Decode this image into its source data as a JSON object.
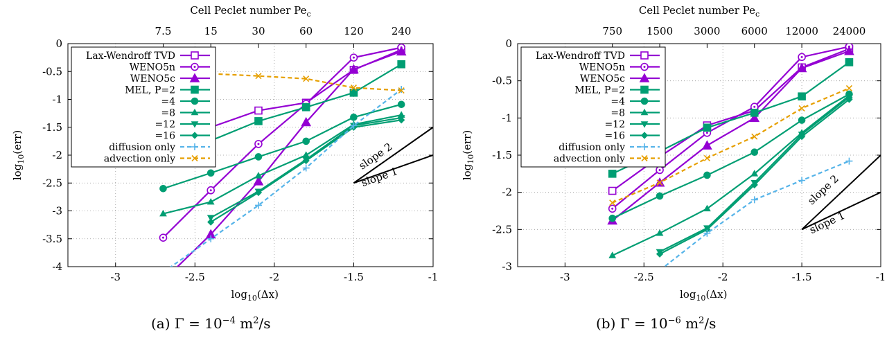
{
  "colors": {
    "lw": "#9400d3",
    "weno5n": "#9400d3",
    "weno5c": "#9400d3",
    "mel": "#009e73",
    "diffusion": "#56b4e9",
    "advection": "#e69f00",
    "slope": "#000000"
  },
  "charts": [
    {
      "caption": {
        "prefix": "(a)",
        "symbol": "Γ =",
        "base": "10",
        "exp": "−4",
        "unit": "m",
        "unit_exp": "2",
        "tail": "/s"
      },
      "chart_data": {
        "type": "line",
        "xlabel": {
          "pre": "log",
          "sub": "10",
          "post": "(Δx)"
        },
        "ylabel": {
          "pre": "log",
          "sub": "10",
          "post": "(err)"
        },
        "x2label": {
          "text": "Cell Peclet number Pe",
          "sub": "c"
        },
        "xlim": [
          -3.3,
          -1.0
        ],
        "ylim": [
          -4.0,
          0.0
        ],
        "xticks": [
          -3,
          -2.5,
          -2,
          -1.5,
          -1
        ],
        "xtick_labels": [
          "-3",
          "-2.5",
          "-2",
          "-1.5",
          "-1"
        ],
        "yticks": [
          0,
          -0.5,
          -1,
          -1.5,
          -2,
          -2.5,
          -3,
          -3.5,
          -4
        ],
        "ytick_labels": [
          "0",
          "-0.5",
          "-1",
          "-1.5",
          "-2",
          "-2.5",
          "-3",
          "-3.5",
          "-4"
        ],
        "x2ticks": [
          -2.7,
          -2.4,
          -2.1,
          -1.8,
          -1.5,
          -1.2
        ],
        "x2tick_labels": [
          "7.5",
          "15",
          "30",
          "60",
          "120",
          "240"
        ],
        "grid": true,
        "legend_position": "top-left",
        "series": [
          {
            "name": "Lax-Wendroff TVD",
            "color_key": "lw",
            "marker": "square",
            "dash": false,
            "x": [
              -2.7,
              -2.4,
              -2.1,
              -1.8,
              -1.5,
              -1.2
            ],
            "y": [
              -1.95,
              -1.5,
              -1.2,
              -1.06,
              -0.47,
              -0.11
            ]
          },
          {
            "name": "WENO5n",
            "color_key": "weno5n",
            "marker": "circle-dot",
            "dash": false,
            "x": [
              -2.7,
              -2.4,
              -2.1,
              -1.8,
              -1.5,
              -1.2
            ],
            "y": [
              -3.48,
              -2.63,
              -1.8,
              -1.08,
              -0.25,
              -0.07
            ]
          },
          {
            "name": "WENO5c",
            "color_key": "weno5c",
            "marker": "triangle",
            "dash": false,
            "x": [
              -2.7,
              -2.4,
              -2.1,
              -1.8,
              -1.5,
              -1.2
            ],
            "y": [
              -4.25,
              -3.42,
              -2.47,
              -1.41,
              -0.46,
              -0.14
            ]
          },
          {
            "name": "MEL, P=2",
            "color_key": "mel",
            "marker": "square-filled",
            "dash": false,
            "x": [
              -2.7,
              -2.4,
              -2.1,
              -1.8,
              -1.5,
              -1.2
            ],
            "y": [
              -2.08,
              -1.74,
              -1.39,
              -1.14,
              -0.88,
              -0.37
            ]
          },
          {
            "name": "=4",
            "color_key": "mel",
            "marker": "circle-filled",
            "dash": false,
            "x": [
              -2.7,
              -2.4,
              -2.1,
              -1.8,
              -1.5,
              -1.2
            ],
            "y": [
              -2.6,
              -2.32,
              -2.03,
              -1.75,
              -1.32,
              -1.09
            ]
          },
          {
            "name": "=8",
            "color_key": "mel",
            "marker": "triangle-filled",
            "dash": false,
            "x": [
              -2.7,
              -2.4,
              -2.1,
              -1.8,
              -1.5,
              -1.2
            ],
            "y": [
              -3.05,
              -2.84,
              -2.37,
              -2.0,
              -1.45,
              -1.28
            ]
          },
          {
            "name": "=12",
            "color_key": "mel",
            "marker": "triangle-down-filled",
            "dash": false,
            "x": [
              -2.4,
              -2.1,
              -1.8,
              -1.5,
              -1.2
            ],
            "y": [
              -3.12,
              -2.65,
              -2.08,
              -1.47,
              -1.33
            ]
          },
          {
            "name": "=16",
            "color_key": "mel",
            "marker": "diamond-filled",
            "dash": false,
            "x": [
              -2.4,
              -2.1,
              -1.8,
              -1.5,
              -1.2
            ],
            "y": [
              -3.2,
              -2.67,
              -2.1,
              -1.5,
              -1.37
            ]
          },
          {
            "name": "diffusion only",
            "color_key": "diffusion",
            "marker": "plus",
            "dash": true,
            "x": [
              -2.7,
              -2.4,
              -2.1,
              -1.8,
              -1.5,
              -1.2
            ],
            "y": [
              -4.1,
              -3.5,
              -2.9,
              -2.23,
              -1.47,
              -0.82
            ]
          },
          {
            "name": "advection only",
            "color_key": "advection",
            "marker": "x",
            "dash": true,
            "x": [
              -2.7,
              -2.4,
              -2.1,
              -1.8,
              -1.5,
              -1.2
            ],
            "y": [
              -0.52,
              -0.54,
              -0.58,
              -0.63,
              -0.79,
              -0.84
            ]
          }
        ],
        "slope_lines": [
          {
            "label": "slope 2",
            "from": [
              -1.5,
              -2.5
            ],
            "to": [
              -1.0,
              -1.5
            ],
            "label_at": [
              -1.35,
              -2.07
            ],
            "angle_data": 2
          },
          {
            "label": "slope 1",
            "from": [
              -1.5,
              -2.5
            ],
            "to": [
              -1.0,
              -2.0
            ],
            "label_at": [
              -1.33,
              -2.45
            ],
            "angle_data": 1
          }
        ]
      }
    },
    {
      "caption": {
        "prefix": "(b)",
        "symbol": "Γ =",
        "base": "10",
        "exp": "−6",
        "unit": "m",
        "unit_exp": "2",
        "tail": "/s"
      },
      "chart_data": {
        "type": "line",
        "xlabel": {
          "pre": "log",
          "sub": "10",
          "post": "(Δx)"
        },
        "ylabel": {
          "pre": "log",
          "sub": "10",
          "post": "(err)"
        },
        "x2label": {
          "text": "Cell Peclet number Pe",
          "sub": "c"
        },
        "xlim": [
          -3.3,
          -1.0
        ],
        "ylim": [
          -3.0,
          0.0
        ],
        "xticks": [
          -3,
          -2.5,
          -2,
          -1.5,
          -1
        ],
        "xtick_labels": [
          "-3",
          "-2.5",
          "-2",
          "-1.5",
          "-1"
        ],
        "yticks": [
          0,
          -0.5,
          -1,
          -1.5,
          -2,
          -2.5,
          -3
        ],
        "ytick_labels": [
          "0",
          "-0.5",
          "-1",
          "-1.5",
          "-2",
          "-2.5",
          "-3"
        ],
        "x2ticks": [
          -2.7,
          -2.4,
          -2.1,
          -1.8,
          -1.5,
          -1.2
        ],
        "x2tick_labels": [
          "750",
          "1500",
          "3000",
          "6000",
          "12000",
          "24000"
        ],
        "grid": true,
        "legend_position": "top-left",
        "series": [
          {
            "name": "Lax-Wendroff TVD",
            "color_key": "lw",
            "marker": "square",
            "dash": false,
            "x": [
              -2.7,
              -2.4,
              -2.1,
              -1.8,
              -1.5,
              -1.2
            ],
            "y": [
              -1.98,
              -1.52,
              -1.1,
              -0.9,
              -0.32,
              -0.07
            ]
          },
          {
            "name": "WENO5n",
            "color_key": "weno5n",
            "marker": "circle-dot",
            "dash": false,
            "x": [
              -2.7,
              -2.4,
              -2.1,
              -1.8,
              -1.5,
              -1.2
            ],
            "y": [
              -2.22,
              -1.7,
              -1.2,
              -0.85,
              -0.18,
              -0.04
            ]
          },
          {
            "name": "WENO5c",
            "color_key": "weno5c",
            "marker": "triangle",
            "dash": false,
            "x": [
              -2.7,
              -2.4,
              -2.1,
              -1.8,
              -1.5,
              -1.2
            ],
            "y": [
              -2.38,
              -1.87,
              -1.37,
              -1.0,
              -0.33,
              -0.1
            ]
          },
          {
            "name": "MEL, P=2",
            "color_key": "mel",
            "marker": "square-filled",
            "dash": false,
            "x": [
              -2.7,
              -2.4,
              -2.1,
              -1.8,
              -1.5,
              -1.2
            ],
            "y": [
              -1.75,
              -1.45,
              -1.13,
              -0.93,
              -0.71,
              -0.25
            ]
          },
          {
            "name": "=4",
            "color_key": "mel",
            "marker": "circle-filled",
            "dash": false,
            "x": [
              -2.7,
              -2.4,
              -2.1,
              -1.8,
              -1.5,
              -1.2
            ],
            "y": [
              -2.35,
              -2.05,
              -1.77,
              -1.46,
              -1.03,
              -0.68
            ]
          },
          {
            "name": "=8",
            "color_key": "mel",
            "marker": "triangle-filled",
            "dash": false,
            "x": [
              -2.7,
              -2.4,
              -2.1,
              -1.8,
              -1.5,
              -1.2
            ],
            "y": [
              -2.85,
              -2.55,
              -2.22,
              -1.75,
              -1.2,
              -0.7
            ]
          },
          {
            "name": "=12",
            "color_key": "mel",
            "marker": "triangle-down-filled",
            "dash": false,
            "x": [
              -2.4,
              -2.1,
              -1.8,
              -1.5,
              -1.2
            ],
            "y": [
              -2.8,
              -2.48,
              -1.87,
              -1.22,
              -0.72
            ]
          },
          {
            "name": "=16",
            "color_key": "mel",
            "marker": "diamond-filled",
            "dash": false,
            "x": [
              -2.4,
              -2.1,
              -1.8,
              -1.5,
              -1.2
            ],
            "y": [
              -2.83,
              -2.5,
              -1.9,
              -1.25,
              -0.75
            ]
          },
          {
            "name": "diffusion only",
            "color_key": "diffusion",
            "marker": "plus",
            "dash": true,
            "x": [
              -2.4,
              -2.1,
              -1.8,
              -1.5,
              -1.2
            ],
            "y": [
              -3.05,
              -2.55,
              -2.1,
              -1.84,
              -1.58
            ]
          },
          {
            "name": "advection only",
            "color_key": "advection",
            "marker": "x",
            "dash": true,
            "x": [
              -2.7,
              -2.4,
              -2.1,
              -1.8,
              -1.5,
              -1.2
            ],
            "y": [
              -2.14,
              -1.87,
              -1.54,
              -1.25,
              -0.87,
              -0.6
            ]
          }
        ],
        "slope_lines": [
          {
            "label": "slope 2",
            "from": [
              -1.5,
              -2.5
            ],
            "to": [
              -1.0,
              -1.5
            ],
            "label_at": [
              -1.35,
              -2.0
            ],
            "angle_data": 2
          },
          {
            "label": "slope 1",
            "from": [
              -1.5,
              -2.5
            ],
            "to": [
              -1.0,
              -2.0
            ],
            "label_at": [
              -1.33,
              -2.45
            ],
            "angle_data": 1
          }
        ]
      }
    }
  ]
}
